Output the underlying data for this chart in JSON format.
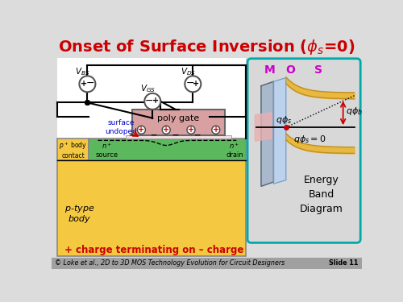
{
  "title": "Onset of Surface Inversion ($\\phi_s$=0)",
  "bg_color": "#dcdcdc",
  "title_color": "#cc0000",
  "footer_text": "© Loke et al., 2D to 3D MOS Technology Evolution for Circuit Designers",
  "footer_slide": "Slide 11",
  "caption": "+ charge terminating on – charge",
  "footer_bg": "#a0a0a0"
}
